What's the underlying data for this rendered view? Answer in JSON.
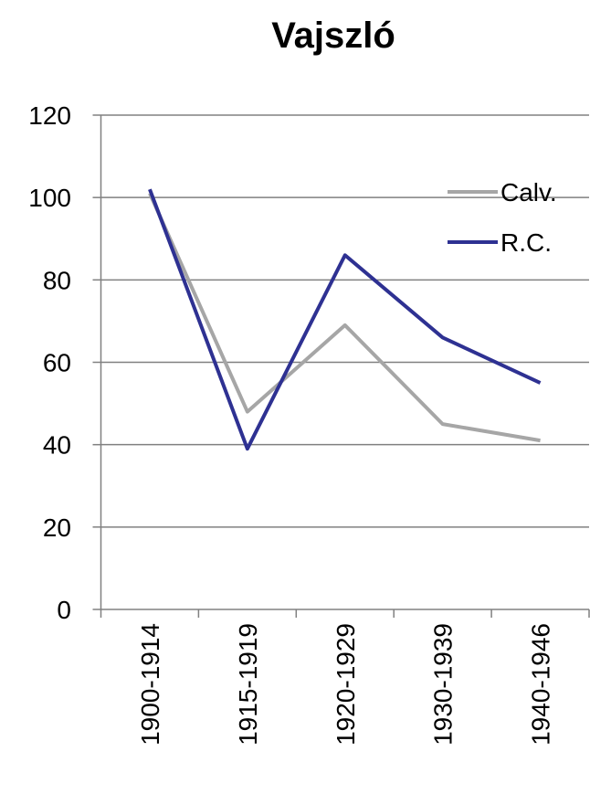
{
  "chart_data": {
    "type": "line",
    "title": "Vajszló",
    "categories": [
      "1900-1914",
      "1915-1919",
      "1920-1929",
      "1930-1939",
      "1940-1946"
    ],
    "series": [
      {
        "name": "Calv.",
        "color": "#a6a6a6",
        "values": [
          101,
          48,
          69,
          45,
          41
        ]
      },
      {
        "name": "R.C.",
        "color": "#2e3192",
        "values": [
          102,
          39,
          86,
          66,
          55
        ]
      }
    ],
    "ylim": [
      0,
      120
    ],
    "yticks": [
      0,
      20,
      40,
      60,
      80,
      100,
      120
    ],
    "grid": true,
    "legend": "right"
  }
}
